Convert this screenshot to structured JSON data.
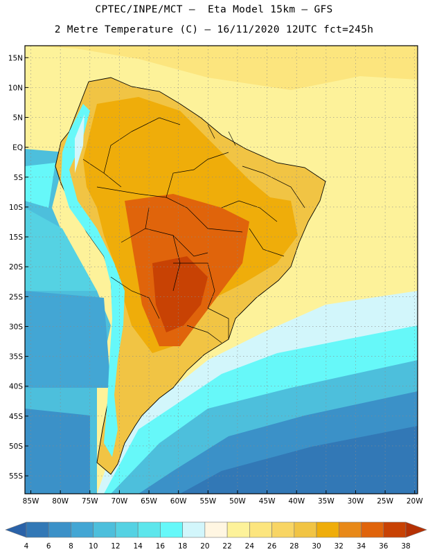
{
  "header": {
    "line1": "CPTEC/INPE/MCT –  Eta Model 15km – GFS",
    "line2": "2 Metre Temperature (C) – 16/11/2020 12UTC fct=245h"
  },
  "map": {
    "lat_labels": [
      "15N",
      "10N",
      "5N",
      "EQ",
      "5S",
      "10S",
      "15S",
      "20S",
      "25S",
      "30S",
      "35S",
      "40S",
      "45S",
      "50S",
      "55S"
    ],
    "lat_values": [
      15,
      10,
      5,
      0,
      -5,
      -10,
      -15,
      -20,
      -25,
      -30,
      -35,
      -40,
      -45,
      -50,
      -55
    ],
    "lon_labels": [
      "85W",
      "80W",
      "75W",
      "70W",
      "65W",
      "60W",
      "55W",
      "50W",
      "45W",
      "40W",
      "35W",
      "30W",
      "25W",
      "20W"
    ],
    "lon_values": [
      -85,
      -80,
      -75,
      -70,
      -65,
      -60,
      -55,
      -50,
      -45,
      -40,
      -35,
      -30,
      -25,
      -20
    ],
    "extent": {
      "lon_min": -86,
      "lon_max": -19.5,
      "lat_min": -58,
      "lat_max": 17
    }
  },
  "legend": {
    "labels": [
      "4",
      "6",
      "8",
      "10",
      "12",
      "14",
      "16",
      "18",
      "20",
      "22",
      "24",
      "26",
      "28",
      "30",
      "32",
      "34",
      "36",
      "38"
    ],
    "colors": [
      "#2a62a8",
      "#3278b6",
      "#3b91c8",
      "#43a6d4",
      "#4dbfdc",
      "#55d2e3",
      "#5de6ec",
      "#66f8f9",
      "#d2f6fb",
      "#fff6e2",
      "#fdf29a",
      "#fce57e",
      "#f8d564",
      "#f1c444",
      "#efad0a",
      "#e88918",
      "#e0640b",
      "#c84204",
      "#b53104"
    ]
  }
}
